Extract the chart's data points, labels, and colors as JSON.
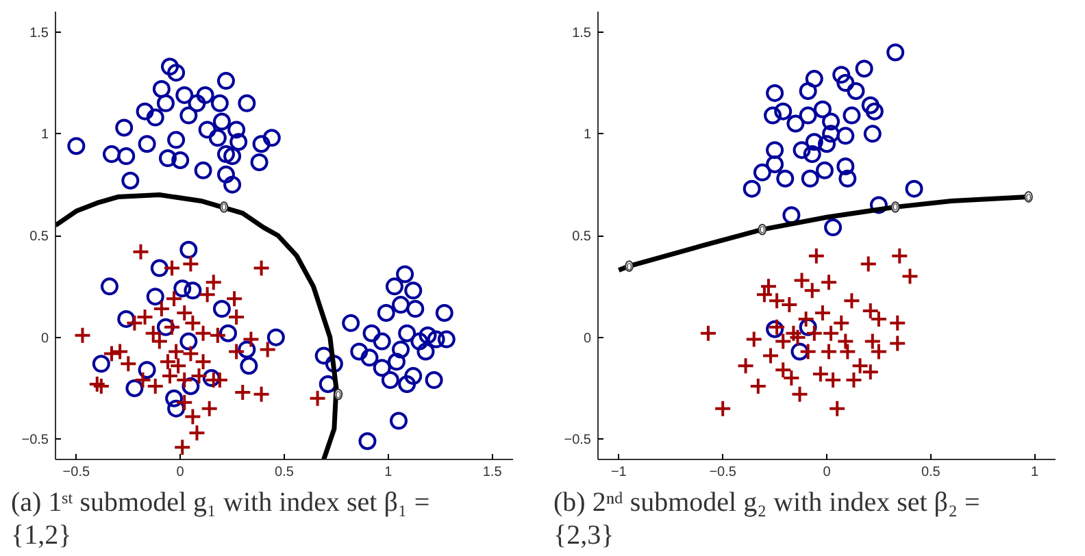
{
  "chart_data": [
    {
      "type": "scatter",
      "title": "(a) 1ˢᵗ submodel g₁ with index set β₁ = {1,2}",
      "xlim": [
        -0.6,
        1.6
      ],
      "ylim": [
        -0.6,
        1.6
      ],
      "xticks": [
        -0.5,
        0,
        0.5,
        1,
        1.5
      ],
      "yticks": [
        -0.5,
        0,
        0.5,
        1,
        1.5
      ],
      "grid": false,
      "annotations": [
        {
          "text": "0",
          "x": 0.21,
          "y": 0.64
        },
        {
          "text": "0",
          "x": 0.76,
          "y": -0.28
        }
      ],
      "series": [
        {
          "type": "scatter",
          "marker": "circle",
          "color": "#00009b",
          "x": [
            -0.5,
            -0.33,
            -0.27,
            -0.26,
            -0.24,
            -0.17,
            -0.16,
            -0.12,
            -0.09,
            -0.07,
            -0.05,
            -0.02,
            -0.06,
            -0.02,
            0.0,
            0.02,
            0.04,
            0.08,
            0.12,
            0.13,
            0.11,
            0.19,
            0.22,
            0.2,
            0.18,
            0.22,
            0.22,
            0.25,
            0.27,
            0.28,
            0.32,
            0.39,
            0.38,
            0.44,
            0.25,
            0.82,
            0.69,
            0.74,
            0.71,
            0.86,
            0.92,
            0.97,
            0.99,
            1.03,
            1.08,
            1.12,
            1.13,
            1.06,
            1.09,
            1.15,
            1.19,
            1.23,
            1.27,
            1.28,
            1.22,
            1.12,
            1.04,
            0.97,
            1.01,
            1.09,
            1.06,
            1.05,
            0.9,
            0.91,
            1.18,
            0.04,
            -0.1,
            -0.34,
            -0.12,
            -0.26,
            -0.38,
            -0.22,
            -0.16,
            -0.03,
            -0.02,
            0.01,
            0.06,
            0.2,
            0.23,
            0.32,
            0.33,
            0.46,
            0.15,
            0.05,
            -0.07,
            0.04
          ],
          "values": [
            0.94,
            0.9,
            1.03,
            0.89,
            0.77,
            1.11,
            0.95,
            1.08,
            1.22,
            1.15,
            1.33,
            1.3,
            0.88,
            0.97,
            0.87,
            1.19,
            1.09,
            1.15,
            1.19,
            1.02,
            0.82,
            1.15,
            1.26,
            1.06,
            0.98,
            0.9,
            0.8,
            0.75,
            1.02,
            0.96,
            1.15,
            0.95,
            0.86,
            0.98,
            0.89,
            0.07,
            -0.09,
            -0.13,
            -0.23,
            -0.07,
            0.02,
            -0.02,
            0.12,
            0.25,
            0.31,
            0.23,
            0.14,
            0.16,
            0.02,
            -0.02,
            0.01,
            -0.01,
            0.12,
            -0.01,
            -0.21,
            -0.19,
            -0.12,
            -0.15,
            -0.21,
            -0.23,
            -0.06,
            -0.41,
            -0.51,
            -0.1,
            -0.07,
            0.43,
            0.34,
            0.25,
            0.2,
            0.09,
            -0.13,
            -0.25,
            -0.16,
            -0.3,
            -0.35,
            0.24,
            0.23,
            0.14,
            0.02,
            -0.06,
            -0.14,
            0.0,
            -0.2,
            -0.24,
            0.05,
            -0.02
          ]
        },
        {
          "type": "scatter",
          "marker": "cross",
          "color": "#a00000",
          "x": [
            -0.47,
            -0.19,
            -0.04,
            0.05,
            0.39,
            0.16,
            0.13,
            0.26,
            0.27,
            -0.22,
            -0.17,
            -0.13,
            -0.1,
            -0.04,
            0.02,
            0.06,
            0.11,
            0.18,
            -0.02,
            0.05,
            0.11,
            -0.29,
            -0.33,
            -0.25,
            -0.4,
            -0.38,
            -0.18,
            -0.12,
            -0.05,
            0.02,
            0.09,
            0.16,
            0.19,
            0.27,
            0.34,
            0.42,
            0.3,
            0.39,
            0.66,
            0.02,
            0.06,
            0.14,
            0.08,
            0.01,
            -0.06,
            -0.01,
            -0.09,
            -0.03
          ],
          "values": [
            0.01,
            0.42,
            0.34,
            0.36,
            0.34,
            0.27,
            0.21,
            0.19,
            0.1,
            0.07,
            0.1,
            0.02,
            -0.02,
            0.05,
            0.12,
            0.07,
            0.02,
            0.01,
            -0.07,
            -0.08,
            -0.12,
            -0.07,
            -0.08,
            -0.13,
            -0.23,
            -0.24,
            -0.21,
            -0.24,
            -0.19,
            -0.21,
            -0.19,
            -0.21,
            -0.21,
            -0.07,
            -0.01,
            -0.06,
            -0.27,
            -0.28,
            -0.3,
            -0.32,
            -0.39,
            -0.35,
            -0.47,
            -0.54,
            -0.12,
            -0.14,
            0.14,
            0.19
          ]
        },
        {
          "type": "line",
          "color": "#000000",
          "x": [
            -0.6,
            -0.5,
            -0.4,
            -0.3,
            -0.1,
            0.1,
            0.2,
            0.3,
            0.4,
            0.47,
            0.56,
            0.64,
            0.72,
            0.75,
            0.74,
            0.69
          ],
          "values": [
            0.55,
            0.62,
            0.66,
            0.69,
            0.7,
            0.67,
            0.64,
            0.61,
            0.54,
            0.5,
            0.4,
            0.25,
            0.0,
            -0.25,
            -0.45,
            -0.6
          ]
        }
      ]
    },
    {
      "type": "scatter",
      "title": "(b) 2ⁿᵈ submodel g₂ with index set β₂ = {2,3}",
      "xlim": [
        -1.1,
        1.1
      ],
      "ylim": [
        -0.6,
        1.6
      ],
      "xticks": [
        -1,
        -0.5,
        0,
        0.5,
        1
      ],
      "yticks": [
        -0.5,
        0,
        0.5,
        1,
        1.5
      ],
      "grid": false,
      "annotations": [
        {
          "text": "0",
          "x": -0.95,
          "y": 0.35
        },
        {
          "text": "0",
          "x": -0.31,
          "y": 0.53
        },
        {
          "text": "0",
          "x": 0.33,
          "y": 0.64
        },
        {
          "text": "0",
          "x": 0.97,
          "y": 0.69
        }
      ],
      "series": [
        {
          "type": "scatter",
          "marker": "circle",
          "color": "#00009b",
          "x": [
            0.33,
            0.18,
            0.07,
            0.09,
            -0.06,
            -0.09,
            -0.25,
            -0.26,
            -0.21,
            -0.15,
            -0.09,
            -0.02,
            0.02,
            0.12,
            0.21,
            0.23,
            0.22,
            0.09,
            0.02,
            -0.06,
            -0.12,
            -0.25,
            -0.25,
            -0.31,
            -0.36,
            -0.2,
            -0.08,
            -0.01,
            0.09,
            0.1,
            0.14,
            -0.07,
            0.0,
            0.42,
            0.25,
            -0.17,
            0.03,
            -0.25,
            -0.13,
            -0.09
          ],
          "values": [
            1.4,
            1.32,
            1.29,
            1.25,
            1.27,
            1.21,
            1.2,
            1.09,
            1.11,
            1.05,
            1.09,
            1.12,
            1.06,
            1.09,
            1.14,
            1.11,
            1.0,
            0.99,
            1.0,
            0.96,
            0.92,
            0.92,
            0.85,
            0.81,
            0.73,
            0.78,
            0.78,
            0.82,
            0.84,
            0.78,
            1.21,
            0.9,
            0.95,
            0.73,
            0.65,
            0.6,
            0.54,
            0.04,
            -0.07,
            0.05
          ]
        },
        {
          "type": "scatter",
          "marker": "cross",
          "color": "#a00000",
          "x": [
            -0.57,
            -0.5,
            -0.39,
            -0.33,
            -0.35,
            -0.3,
            -0.28,
            -0.24,
            -0.24,
            -0.27,
            -0.21,
            -0.17,
            -0.13,
            -0.18,
            -0.12,
            -0.07,
            -0.05,
            0.01,
            -0.16,
            -0.1,
            -0.06,
            -0.02,
            0.02,
            0.07,
            0.12,
            0.1,
            0.16,
            0.13,
            0.03,
            -0.03,
            -0.09,
            -0.21,
            0.05,
            0.2,
            0.35,
            0.4,
            0.21,
            0.25,
            0.34,
            0.34,
            0.22,
            0.25,
            0.21,
            0.09,
            0.01,
            -0.14
          ],
          "values": [
            0.02,
            -0.35,
            -0.14,
            -0.24,
            -0.01,
            0.21,
            0.25,
            0.18,
            0.05,
            -0.09,
            -0.16,
            -0.2,
            -0.28,
            0.16,
            0.28,
            0.23,
            0.4,
            0.27,
            0.02,
            0.09,
            0.02,
            0.12,
            0.02,
            0.07,
            0.18,
            -0.07,
            -0.14,
            -0.21,
            -0.21,
            -0.18,
            -0.07,
            -0.02,
            -0.35,
            0.36,
            0.4,
            0.3,
            0.13,
            0.09,
            0.07,
            -0.03,
            -0.02,
            -0.07,
            -0.17,
            -0.02,
            -0.07,
            0.0
          ]
        },
        {
          "type": "line",
          "color": "#000000",
          "x": [
            -1.0,
            -0.95,
            -0.6,
            -0.31,
            0.0,
            0.33,
            0.6,
            0.97
          ],
          "values": [
            0.33,
            0.35,
            0.45,
            0.53,
            0.59,
            0.64,
            0.67,
            0.69
          ]
        }
      ]
    }
  ]
}
